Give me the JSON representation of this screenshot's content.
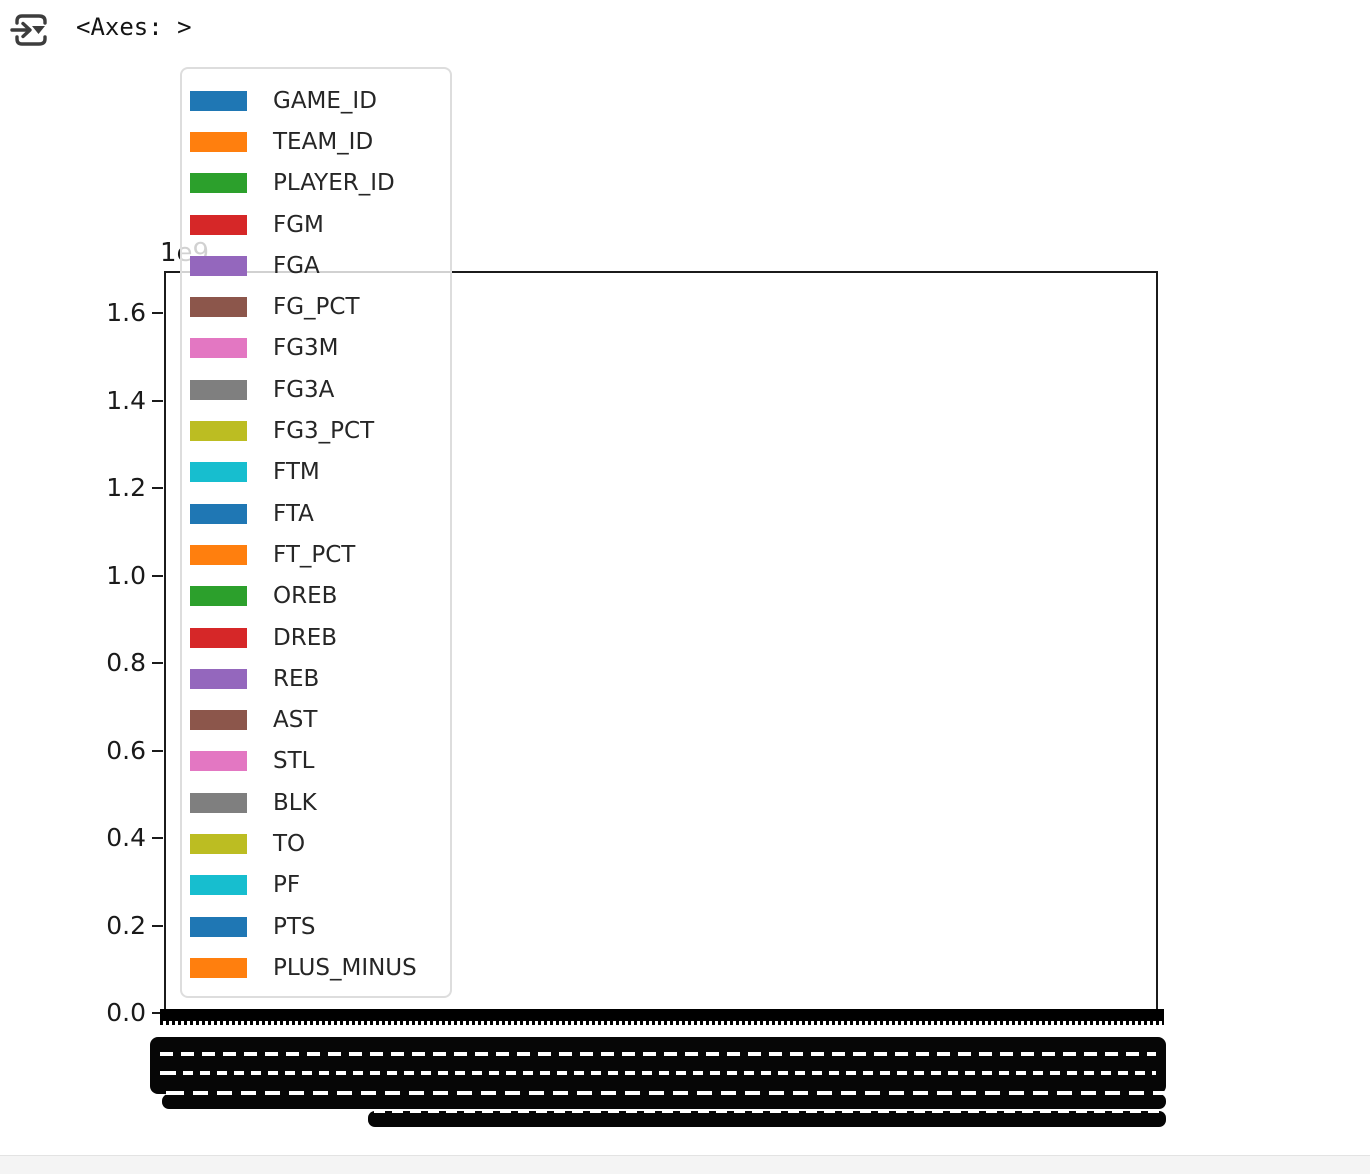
{
  "notebook_output": {
    "repr_text": "<Axes: >",
    "toolbar_icon": "output-options-icon"
  },
  "chart_data": {
    "type": "bar",
    "title": "",
    "xlabel": "",
    "ylabel": "",
    "y_offset_label": "1e9",
    "ylim": [
      0.0,
      1.695
    ],
    "yticks": [
      "0.0",
      "0.2",
      "0.4",
      "0.6",
      "0.8",
      "1.0",
      "1.2",
      "1.4",
      "1.6"
    ],
    "grid": false,
    "legend_position": "upper left",
    "series": [
      {
        "name": "GAME_ID",
        "color": "#1f77b4"
      },
      {
        "name": "TEAM_ID",
        "color": "#ff7f0e"
      },
      {
        "name": "PLAYER_ID",
        "color": "#2ca02c"
      },
      {
        "name": "FGM",
        "color": "#d62728"
      },
      {
        "name": "FGA",
        "color": "#9467bd"
      },
      {
        "name": "FG_PCT",
        "color": "#8c564b"
      },
      {
        "name": "FG3M",
        "color": "#e377c2"
      },
      {
        "name": "FG3A",
        "color": "#7f7f7f"
      },
      {
        "name": "FG3_PCT",
        "color": "#bcbd22"
      },
      {
        "name": "FTM",
        "color": "#17becf"
      },
      {
        "name": "FTA",
        "color": "#1f77b4"
      },
      {
        "name": "FT_PCT",
        "color": "#ff7f0e"
      },
      {
        "name": "OREB",
        "color": "#2ca02c"
      },
      {
        "name": "DREB",
        "color": "#d62728"
      },
      {
        "name": "REB",
        "color": "#9467bd"
      },
      {
        "name": "AST",
        "color": "#8c564b"
      },
      {
        "name": "STL",
        "color": "#e377c2"
      },
      {
        "name": "BLK",
        "color": "#7f7f7f"
      },
      {
        "name": "TO",
        "color": "#bcbd22"
      },
      {
        "name": "PF",
        "color": "#17becf"
      },
      {
        "name": "PTS",
        "color": "#1f77b4"
      },
      {
        "name": "PLUS_MINUS",
        "color": "#ff7f0e"
      }
    ],
    "x_axis": {
      "ticklabels_legible": false,
      "note": "thousands of overlapping x tick labels render as solid black bands"
    }
  }
}
